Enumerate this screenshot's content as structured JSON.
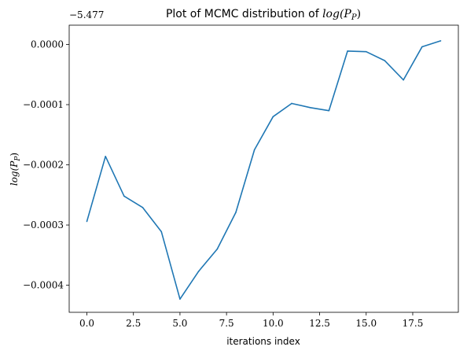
{
  "chart_data": {
    "type": "line",
    "title_text": "Plot of MCMC distribution of ",
    "title_math": "log(P",
    "title_math_sub": "P",
    "title_math_close": ")",
    "xlabel": "iterations index",
    "ylabel_main": "log(P",
    "ylabel_sub": "P",
    "ylabel_close": ")",
    "offset_text": "−5.477",
    "xlim": [
      -0.95,
      19.95
    ],
    "ylim": [
      -0.000445,
      3.2e-05
    ],
    "x_ticks": [
      0,
      2.5,
      5,
      7.5,
      10,
      12.5,
      15,
      17.5
    ],
    "x_tick_labels": [
      "0.0",
      "2.5",
      "5.0",
      "7.5",
      "10.0",
      "12.5",
      "15.0",
      "17.5"
    ],
    "y_ticks": [
      0,
      -0.0001,
      -0.0002,
      -0.0003,
      -0.0004
    ],
    "y_tick_labels": [
      "0.0000",
      "−0.0001",
      "−0.0002",
      "−0.0003",
      "−0.0004"
    ],
    "series": [
      {
        "color": "#1f77b4",
        "x": [
          0,
          1,
          2,
          3,
          4,
          5,
          6,
          7,
          8,
          9,
          10,
          11,
          12,
          13,
          14,
          15,
          16,
          17,
          18,
          19
        ],
        "y": [
          -0.000294,
          -0.000186,
          -0.000252,
          -0.000271,
          -0.000311,
          -0.000423,
          -0.000377,
          -0.00034,
          -0.000279,
          -0.000175,
          -0.00012,
          -9.8e-05,
          -0.000105,
          -0.00011,
          -1.1e-05,
          -1.2e-05,
          -2.7e-05,
          -5.9e-05,
          -4e-06,
          6e-06
        ]
      }
    ],
    "grid": false,
    "legend": "none"
  }
}
